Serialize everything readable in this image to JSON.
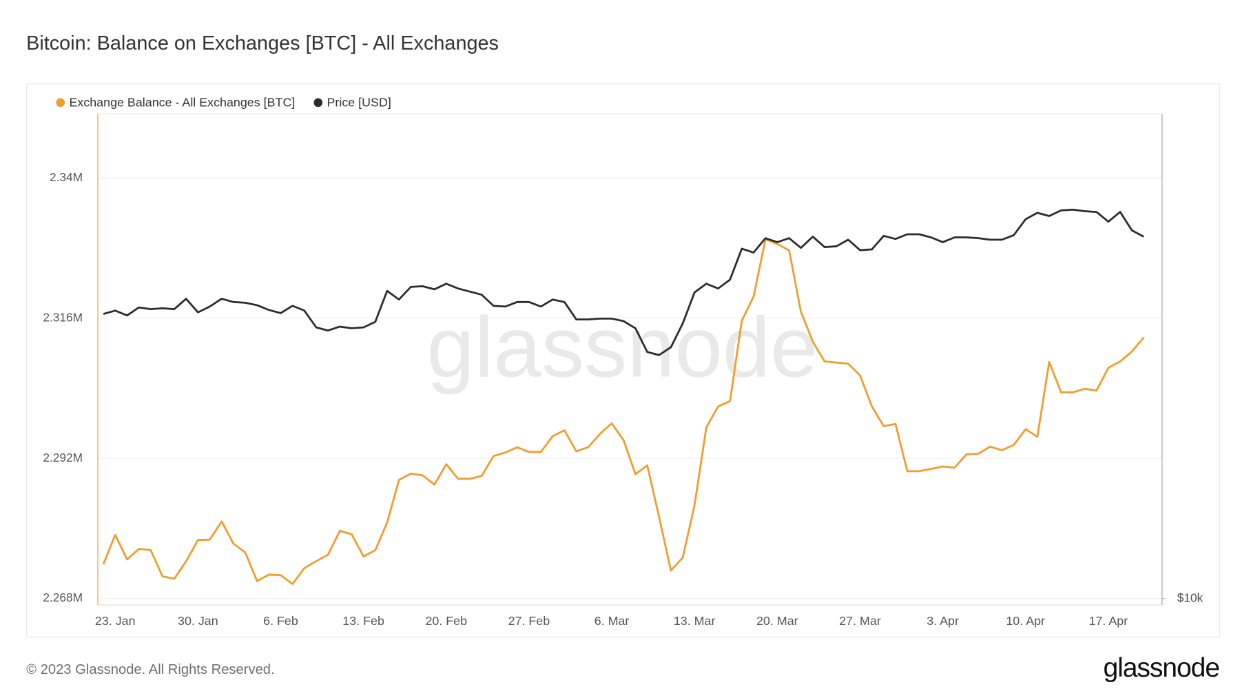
{
  "chart_data": {
    "type": "line",
    "title": "Bitcoin: Balance on Exchanges [BTC] - All Exchanges",
    "watermark": "glassnode",
    "x": [
      "22. Jan",
      "23. Jan",
      "24. Jan",
      "25. Jan",
      "26. Jan",
      "27. Jan",
      "28. Jan",
      "29. Jan",
      "30. Jan",
      "31. Jan",
      "1. Feb",
      "2. Feb",
      "3. Feb",
      "4. Feb",
      "5. Feb",
      "6. Feb",
      "7. Feb",
      "8. Feb",
      "9. Feb",
      "10. Feb",
      "11. Feb",
      "12. Feb",
      "13. Feb",
      "14. Feb",
      "15. Feb",
      "16. Feb",
      "17. Feb",
      "18. Feb",
      "19. Feb",
      "20. Feb",
      "21. Feb",
      "22. Feb",
      "23. Feb",
      "24. Feb",
      "25. Feb",
      "26. Feb",
      "27. Feb",
      "28. Feb",
      "1. Mar",
      "2. Mar",
      "3. Mar",
      "4. Mar",
      "5. Mar",
      "6. Mar",
      "7. Mar",
      "8. Mar",
      "9. Mar",
      "10. Mar",
      "11. Mar",
      "12. Mar",
      "13. Mar",
      "14. Mar",
      "15. Mar",
      "16. Mar",
      "17. Mar",
      "18. Mar",
      "19. Mar",
      "20. Mar",
      "21. Mar",
      "22. Mar",
      "23. Mar",
      "24. Mar",
      "25. Mar",
      "26. Mar",
      "27. Mar",
      "28. Mar",
      "29. Mar",
      "30. Mar",
      "31. Mar",
      "1. Apr",
      "2. Apr",
      "3. Apr",
      "4. Apr",
      "5. Apr",
      "6. Apr",
      "7. Apr",
      "8. Apr",
      "9. Apr",
      "10. Apr",
      "11. Apr",
      "12. Apr",
      "13. Apr",
      "14. Apr",
      "15. Apr",
      "16. Apr",
      "17. Apr",
      "18. Apr",
      "19. Apr",
      "20. Apr"
    ],
    "xticks": [
      "23. Jan",
      "30. Jan",
      "6. Feb",
      "13. Feb",
      "20. Feb",
      "27. Feb",
      "6. Mar",
      "13. Mar",
      "20. Mar",
      "27. Mar",
      "3. Apr",
      "10. Apr",
      "17. Apr"
    ],
    "series": [
      {
        "name": "Exchange Balance - All Exchanges [BTC]",
        "color": "#f19c2c",
        "axis": "y",
        "values": [
          2273900,
          2278900,
          2274700,
          2276500,
          2276300,
          2271800,
          2271400,
          2274400,
          2278000,
          2278100,
          2281200,
          2277400,
          2275900,
          2271000,
          2272100,
          2272000,
          2270500,
          2273200,
          2274400,
          2275500,
          2279600,
          2279000,
          2275200,
          2276300,
          2281000,
          2288300,
          2289400,
          2289100,
          2287500,
          2291000,
          2288500,
          2288500,
          2289000,
          2292400,
          2293000,
          2293900,
          2293100,
          2293100,
          2295800,
          2296800,
          2293200,
          2293900,
          2296200,
          2298000,
          2295100,
          2289300,
          2290800,
          2282000,
          2272800,
          2275000,
          2284000,
          2297300,
          2300900,
          2301800,
          2315600,
          2319700,
          2329500,
          2328700,
          2327600,
          2317100,
          2312000,
          2308600,
          2308400,
          2308200,
          2306200,
          2300900,
          2297500,
          2297900,
          2289800,
          2289800,
          2290200,
          2290600,
          2290400,
          2292700,
          2292800,
          2294000,
          2293400,
          2294300,
          2297000,
          2295700,
          2308500,
          2303300,
          2303300,
          2303900,
          2303600,
          2307500,
          2308600,
          2310300,
          2312700
        ]
      },
      {
        "name": "Price [USD]",
        "color": "#2b2b2b",
        "axis": "y2",
        "values": [
          22400,
          22610,
          22300,
          22810,
          22710,
          22760,
          22710,
          23380,
          22500,
          22870,
          23380,
          23170,
          23120,
          22960,
          22650,
          22450,
          22920,
          22610,
          21560,
          21370,
          21610,
          21510,
          21560,
          21900,
          23910,
          23330,
          24180,
          24230,
          24020,
          24400,
          24070,
          23860,
          23650,
          22920,
          22870,
          23170,
          23170,
          22870,
          23330,
          23170,
          22050,
          22050,
          22100,
          22100,
          21950,
          21510,
          20110,
          19930,
          20380,
          21800,
          23810,
          24400,
          24070,
          24680,
          26950,
          26650,
          27760,
          27450,
          27760,
          27010,
          27880,
          27070,
          27130,
          27640,
          26830,
          26890,
          27940,
          27700,
          28070,
          28070,
          27820,
          27450,
          27820,
          27820,
          27760,
          27640,
          27640,
          28000,
          29290,
          29830,
          29560,
          30030,
          30100,
          29960,
          29900,
          29090,
          29900,
          28380,
          27880
        ]
      }
    ],
    "ylim": [
      2266900,
      2351000
    ],
    "yticks": [
      {
        "value": 2268000,
        "label": "2.268M"
      },
      {
        "value": 2292000,
        "label": "2.292M"
      },
      {
        "value": 2316000,
        "label": "2.316M"
      },
      {
        "value": 2340000,
        "label": "2.34M"
      }
    ],
    "y2lim": [
      9820,
      39500
    ],
    "y2ticks": [
      {
        "value": 10000,
        "label": "$10k"
      }
    ],
    "y2scale": "log",
    "grid": true,
    "legend": "top-left"
  },
  "footer": {
    "copyright": "© 2023 Glassnode. All Rights Reserved.",
    "brand": "glassnode"
  }
}
